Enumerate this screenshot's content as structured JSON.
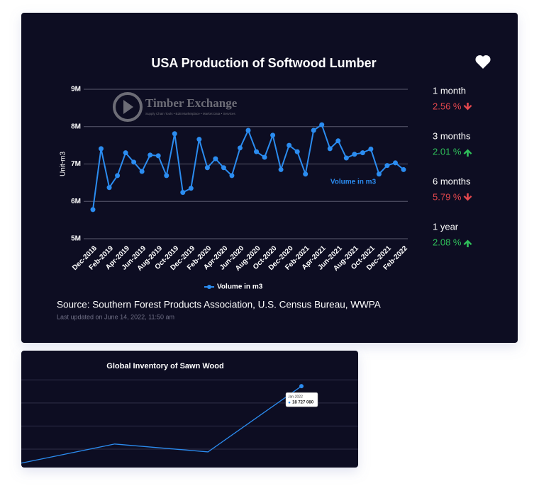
{
  "chart_data": [
    {
      "type": "line",
      "title": "USA Production of Softwood Lumber",
      "y_label": "Unit-m3",
      "annotation": "Volume in m3",
      "categories": [
        "Dec-2018",
        null,
        "Feb-2019",
        null,
        "Apr-2019",
        null,
        "Jun-2019",
        null,
        "Aug-2019",
        null,
        "Oct-2019",
        null,
        "Dec-2019",
        null,
        "Feb-2020",
        null,
        "Apr-2020",
        null,
        "Jun-2020",
        null,
        "Aug-2020",
        null,
        "Oct-2020",
        null,
        "Dec-2020",
        null,
        "Feb-2021",
        null,
        "Apr-2021",
        null,
        "Jun-2021",
        null,
        "Aug-2021",
        null,
        "Oct-2021",
        null,
        "Dec-2021",
        null,
        "Feb-2022"
      ],
      "series": [
        {
          "name": "Volume in m3",
          "color": "#2b8cf0",
          "values": [
            5780000,
            7410000,
            6370000,
            6690000,
            7300000,
            7050000,
            6800000,
            7240000,
            7220000,
            6690000,
            7810000,
            6240000,
            6350000,
            7660000,
            6900000,
            7140000,
            6900000,
            6690000,
            7430000,
            7900000,
            7330000,
            7180000,
            7770000,
            6850000,
            7500000,
            7330000,
            6730000,
            7900000,
            8050000,
            7410000,
            7620000,
            7160000,
            7260000,
            7300000,
            7400000,
            6730000,
            6960000,
            7030000,
            6850000
          ]
        }
      ],
      "ylim": [
        5000000,
        9000000
      ],
      "yticks": [
        {
          "value": 5000000,
          "label": "5M"
        },
        {
          "value": 6000000,
          "label": "6M"
        },
        {
          "value": 7000000,
          "label": "7M"
        },
        {
          "value": 8000000,
          "label": "8M"
        },
        {
          "value": 9000000,
          "label": "9M"
        }
      ],
      "grid": true,
      "legend": "bottom"
    },
    {
      "type": "line",
      "title": "Global Inventory of Sawn Wood",
      "categories": [
        null,
        null,
        null,
        "Jan-2022"
      ],
      "series": [
        {
          "color": "#2b8cf0",
          "values": [
            15390000,
            16220000,
            15880000,
            18727080
          ],
          "value_labels": [
            null,
            null,
            null,
            "18 727 080"
          ]
        }
      ],
      "ylim": [
        15200000,
        19500000
      ],
      "yticks": [
        16000000,
        17000000,
        18000000,
        19000000
      ],
      "grid": true,
      "show_tick_labels": false,
      "tooltip_index": 3
    }
  ],
  "watermark": {
    "name": "Timber Exchange",
    "tagline": "Supply Chain Tools • B2B Marketplace • Market Data • Services"
  },
  "stats": [
    {
      "period": "1 month",
      "change": "2.56 %",
      "direction": "down"
    },
    {
      "period": "3 months",
      "change": "2.01 %",
      "direction": "up"
    },
    {
      "period": "6 months",
      "change": "5.79 %",
      "direction": "down"
    },
    {
      "period": "1 year",
      "change": "2.08 %",
      "direction": "up"
    }
  ],
  "source": "Source: Southern Forest Products Association, U.S. Census Bureau, WWPA",
  "updated": "Last updated on June 14, 2022, 11:50 am"
}
